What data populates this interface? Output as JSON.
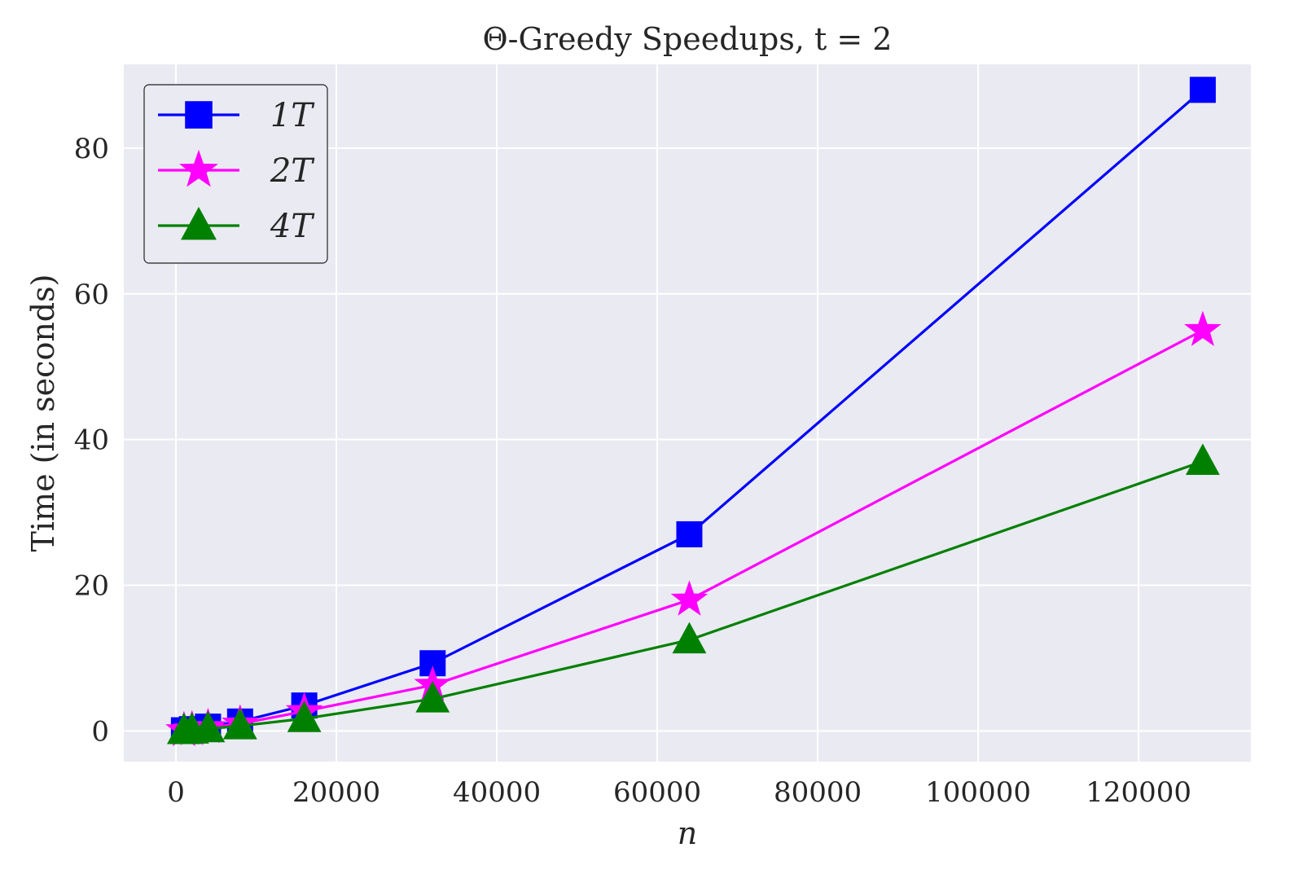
{
  "chart_data": {
    "type": "line",
    "title": "Θ-Greedy Speedups, t = 2",
    "xlabel": "n",
    "ylabel": "Time (in seconds)",
    "xlim": [
      -6500,
      134000
    ],
    "ylim": [
      -4.2,
      91.5
    ],
    "x_ticks": [
      0,
      20000,
      40000,
      60000,
      80000,
      100000,
      120000
    ],
    "x_tick_labels": [
      "0",
      "20000",
      "40000",
      "60000",
      "80000",
      "100000",
      "120000"
    ],
    "y_ticks": [
      0,
      20,
      40,
      60,
      80
    ],
    "y_tick_labels": [
      "0",
      "20",
      "40",
      "60",
      "80"
    ],
    "grid": true,
    "legend_position": "top-left",
    "x": [
      1000,
      2000,
      4000,
      8000,
      16000,
      32000,
      64000,
      128000
    ],
    "series": [
      {
        "name": "1T",
        "color": "#0000ff",
        "marker": "square",
        "values": [
          0.1,
          0.25,
          0.6,
          1.3,
          3.5,
          9.3,
          27.0,
          88.0
        ]
      },
      {
        "name": "2T",
        "color": "#ff00ff",
        "marker": "star",
        "values": [
          0.08,
          0.2,
          0.5,
          1.0,
          2.7,
          6.3,
          18.0,
          55.0
        ]
      },
      {
        "name": "4T",
        "color": "#008000",
        "marker": "triangle",
        "values": [
          0.05,
          0.12,
          0.3,
          0.7,
          1.7,
          4.4,
          12.5,
          37.0
        ]
      }
    ]
  }
}
